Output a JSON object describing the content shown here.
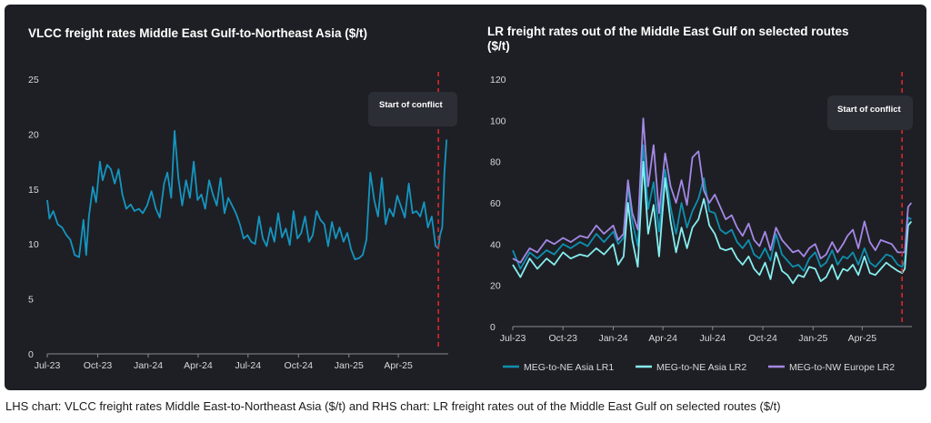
{
  "caption": "LHS chart: VLCC freight rates Middle East-to-Northeast Asia ($/t) and RHS chart: LR freight rates out of the Middle East Gulf on selected routes ($/t)",
  "colors": {
    "background": "#1e1f24",
    "vlcc": "#1595c0",
    "lr1": "#0e8fb0",
    "lr2": "#86eef0",
    "lr2_europe": "#a488e6",
    "conflict_line": "#e0262a",
    "annotation_box": "#2c2e36"
  },
  "chart_data": [
    {
      "type": "line",
      "title": "VLCC freight rates Middle East Gulf-to-Northeast Asia ($/t)",
      "xlabel": "",
      "ylabel": "",
      "ylim": [
        0,
        25
      ],
      "y_ticks": [
        "0",
        "5",
        "10",
        "15",
        "20",
        "25"
      ],
      "x_range": [
        "2023-07-01",
        "2025-07-01"
      ],
      "x_ticks": [
        "Jul-23",
        "Oct-23",
        "Jan-24",
        "Apr-24",
        "Jul-24",
        "Oct-24",
        "Jan-25",
        "Apr-25"
      ],
      "grid": false,
      "annotation": {
        "label": "Start of conflict",
        "date": "2025-06-13"
      },
      "series": [
        {
          "x": [
            "2023-07-01",
            "2023-07-05",
            "2023-07-12",
            "2023-07-20",
            "2023-07-28",
            "2023-08-05",
            "2023-08-12",
            "2023-08-20",
            "2023-08-28",
            "2023-09-05",
            "2023-09-10",
            "2023-09-15",
            "2023-09-22",
            "2023-09-28",
            "2023-10-05",
            "2023-10-10",
            "2023-10-18",
            "2023-10-25",
            "2023-11-01",
            "2023-11-08",
            "2023-11-15",
            "2023-11-22",
            "2023-11-30",
            "2023-12-07",
            "2023-12-15",
            "2023-12-22",
            "2023-12-30",
            "2024-01-07",
            "2024-01-15",
            "2024-01-22",
            "2024-01-30",
            "2024-02-05",
            "2024-02-12",
            "2024-02-18",
            "2024-02-25",
            "2024-03-03",
            "2024-03-10",
            "2024-03-17",
            "2024-03-24",
            "2024-03-31",
            "2024-04-07",
            "2024-04-14",
            "2024-04-21",
            "2024-04-28",
            "2024-05-05",
            "2024-05-12",
            "2024-05-19",
            "2024-05-26",
            "2024-06-02",
            "2024-06-09",
            "2024-06-16",
            "2024-06-23",
            "2024-06-30",
            "2024-07-07",
            "2024-07-14",
            "2024-07-21",
            "2024-07-28",
            "2024-08-04",
            "2024-08-11",
            "2024-08-18",
            "2024-08-25",
            "2024-09-01",
            "2024-09-08",
            "2024-09-15",
            "2024-09-22",
            "2024-09-29",
            "2024-10-06",
            "2024-10-13",
            "2024-10-20",
            "2024-10-27",
            "2024-11-03",
            "2024-11-10",
            "2024-11-17",
            "2024-11-24",
            "2024-12-01",
            "2024-12-08",
            "2024-12-15",
            "2024-12-22",
            "2024-12-29",
            "2025-01-05",
            "2025-01-12",
            "2025-01-19",
            "2025-01-26",
            "2025-02-02",
            "2025-02-09",
            "2025-02-16",
            "2025-02-23",
            "2025-03-02",
            "2025-03-09",
            "2025-03-16",
            "2025-03-23",
            "2025-03-30",
            "2025-04-06",
            "2025-04-13",
            "2025-04-20",
            "2025-04-27",
            "2025-05-04",
            "2025-05-11",
            "2025-05-18",
            "2025-05-25",
            "2025-06-01",
            "2025-06-08",
            "2025-06-13",
            "2025-06-16",
            "2025-06-20",
            "2025-06-24",
            "2025-06-28"
          ],
          "values": [
            14.0,
            12.3,
            13.0,
            11.8,
            11.5,
            10.8,
            10.4,
            9.0,
            8.8,
            12.2,
            9.0,
            12.5,
            15.2,
            13.8,
            17.5,
            15.8,
            17.2,
            16.8,
            15.5,
            16.8,
            14.5,
            13.2,
            13.6,
            13.0,
            13.2,
            12.8,
            13.5,
            14.8,
            13.2,
            12.4,
            15.5,
            16.5,
            14.2,
            20.3,
            16.0,
            13.5,
            15.8,
            14.2,
            17.5,
            14.0,
            14.5,
            13.2,
            15.8,
            14.5,
            13.5,
            16.0,
            12.8,
            14.2,
            13.5,
            12.8,
            11.8,
            10.5,
            10.8,
            10.2,
            10.0,
            12.5,
            10.5,
            9.8,
            11.5,
            10.2,
            12.8,
            10.6,
            11.4,
            9.9,
            13.0,
            10.5,
            11.0,
            12.5,
            10.2,
            10.8,
            13.0,
            12.2,
            11.8,
            9.8,
            12.0,
            10.5,
            11.5,
            10.2,
            11.0,
            9.5,
            8.6,
            8.7,
            9.0,
            10.4,
            16.5,
            14.0,
            12.5,
            16.0,
            11.8,
            13.2,
            12.5,
            14.4,
            13.4,
            12.4,
            15.5,
            12.8,
            13.0,
            12.5,
            13.8,
            11.5,
            12.5,
            9.8,
            9.6,
            10.8,
            11.5,
            16.5,
            19.5
          ]
        }
      ]
    },
    {
      "type": "line",
      "title": "LR freight rates out of the Middle East Gulf on selected routes ($/t)",
      "xlabel": "",
      "ylabel": "",
      "ylim": [
        0,
        120
      ],
      "y_ticks": [
        "0",
        "20",
        "40",
        "60",
        "80",
        "100",
        "120"
      ],
      "x_range": [
        "2023-07-01",
        "2025-07-01"
      ],
      "x_ticks": [
        "Jul-23",
        "Oct-23",
        "Jan-24",
        "Apr-24",
        "Jul-24",
        "Oct-24",
        "Jan-25",
        "Apr-25"
      ],
      "grid": false,
      "legend_position": "bottom",
      "annotation": {
        "label": "Start of conflict",
        "date": "2025-06-13"
      },
      "x": [
        "2023-07-01",
        "2023-07-15",
        "2023-08-01",
        "2023-08-15",
        "2023-09-01",
        "2023-09-15",
        "2023-10-01",
        "2023-10-15",
        "2023-11-01",
        "2023-11-15",
        "2023-12-01",
        "2023-12-15",
        "2024-01-01",
        "2024-01-10",
        "2024-01-20",
        "2024-01-28",
        "2024-02-05",
        "2024-02-15",
        "2024-02-25",
        "2024-03-05",
        "2024-03-15",
        "2024-03-25",
        "2024-04-05",
        "2024-04-15",
        "2024-04-25",
        "2024-05-05",
        "2024-05-15",
        "2024-05-25",
        "2024-06-05",
        "2024-06-15",
        "2024-06-25",
        "2024-07-05",
        "2024-07-15",
        "2024-07-25",
        "2024-08-05",
        "2024-08-15",
        "2024-08-25",
        "2024-09-05",
        "2024-09-15",
        "2024-09-25",
        "2024-10-05",
        "2024-10-15",
        "2024-10-25",
        "2024-11-05",
        "2024-11-15",
        "2024-11-25",
        "2024-12-05",
        "2024-12-15",
        "2024-12-25",
        "2025-01-05",
        "2025-01-15",
        "2025-01-25",
        "2025-02-05",
        "2025-02-15",
        "2025-02-25",
        "2025-03-05",
        "2025-03-15",
        "2025-03-25",
        "2025-04-05",
        "2025-04-15",
        "2025-04-25",
        "2025-05-05",
        "2025-05-15",
        "2025-05-25",
        "2025-06-05",
        "2025-06-13",
        "2025-06-18",
        "2025-06-24",
        "2025-06-30"
      ],
      "series": [
        {
          "name": "MEG-to-NE Asia LR1",
          "values": [
            37,
            28,
            36,
            33,
            37,
            35,
            40,
            38,
            41,
            39,
            45,
            41,
            46,
            40,
            43,
            68,
            51,
            39,
            88,
            57,
            70,
            46,
            76,
            58,
            45,
            60,
            48,
            56,
            62,
            72,
            56,
            55,
            47,
            45,
            47,
            41,
            38,
            42,
            35,
            33,
            38,
            32,
            45,
            35,
            32,
            29,
            30,
            27,
            33,
            36,
            29,
            31,
            37,
            30,
            34,
            33,
            36,
            30,
            38,
            31,
            29,
            32,
            35,
            34,
            30,
            29,
            32,
            53,
            52
          ]
        },
        {
          "name": "MEG-to-NE Asia LR2",
          "values": [
            30,
            24,
            33,
            28,
            33,
            30,
            36,
            33,
            35,
            34,
            38,
            35,
            40,
            30,
            34,
            60,
            42,
            29,
            80,
            45,
            59,
            34,
            72,
            51,
            36,
            48,
            38,
            48,
            52,
            62,
            49,
            45,
            38,
            37,
            38,
            33,
            30,
            34,
            28,
            25,
            31,
            23,
            36,
            27,
            25,
            21,
            25,
            24,
            29,
            28,
            22,
            24,
            30,
            23,
            28,
            27,
            30,
            25,
            34,
            26,
            25,
            28,
            31,
            29,
            27,
            26,
            28,
            49,
            51
          ]
        },
        {
          "name": "MEG-to-NW Europe LR2",
          "values": [
            33,
            31,
            38,
            36,
            42,
            40,
            43,
            41,
            44,
            43,
            49,
            45,
            49,
            42,
            45,
            71,
            55,
            47,
            101,
            68,
            88,
            55,
            84,
            68,
            60,
            71,
            59,
            82,
            85,
            66,
            60,
            64,
            58,
            52,
            54,
            48,
            44,
            50,
            42,
            39,
            46,
            37,
            48,
            42,
            39,
            36,
            37,
            34,
            38,
            40,
            33,
            35,
            41,
            36,
            40,
            44,
            47,
            38,
            51,
            41,
            37,
            42,
            41,
            40,
            36,
            36,
            36,
            58,
            60
          ]
        }
      ]
    }
  ]
}
